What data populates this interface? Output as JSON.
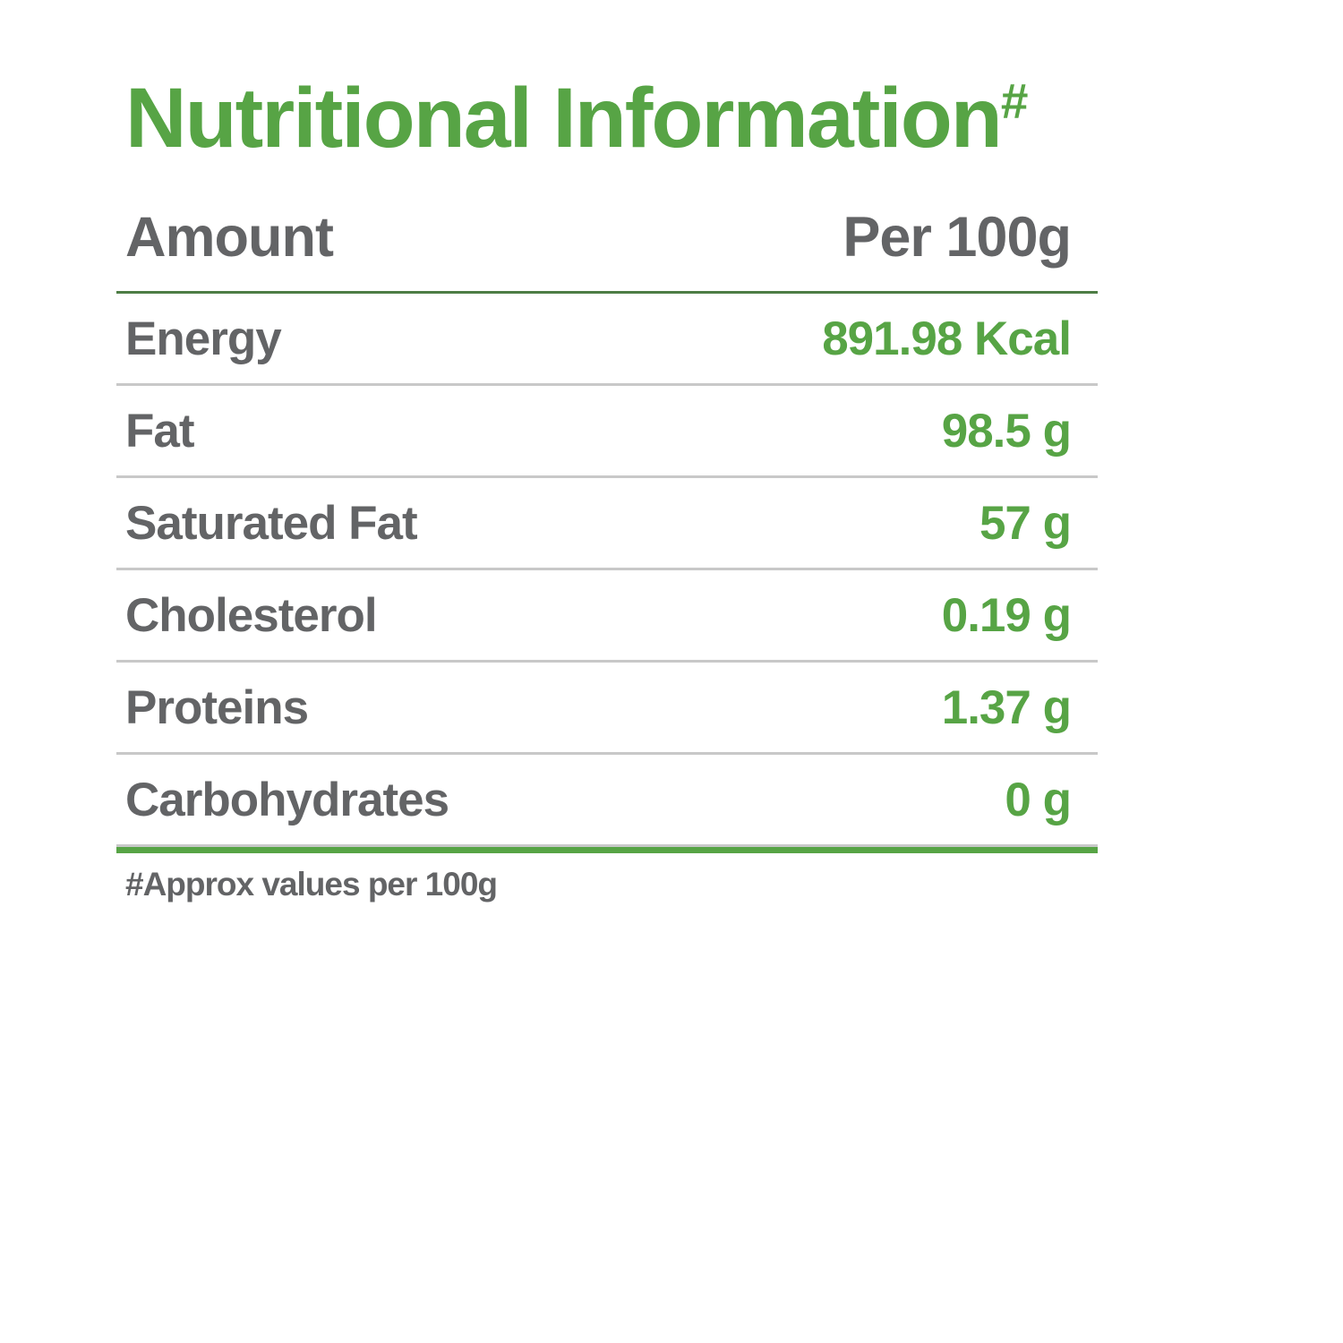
{
  "title": {
    "text": "Nutritional Information",
    "superscript": "#"
  },
  "colors": {
    "green": "#57a445",
    "dark_green_line": "#4d7d45",
    "gray_text": "#636466",
    "light_line": "#c8c8c8"
  },
  "table": {
    "header": {
      "amount_label": "Amount",
      "per_label": "Per 100g"
    },
    "rows": [
      {
        "label": "Energy",
        "value": "891.98 Kcal"
      },
      {
        "label": "Fat",
        "value": "98.5 g"
      },
      {
        "label": "Saturated Fat",
        "value": "57 g"
      },
      {
        "label": "Cholesterol",
        "value": "0.19 g"
      },
      {
        "label": "Proteins",
        "value": "1.37 g"
      },
      {
        "label": "Carbohydrates",
        "value": "0 g"
      }
    ]
  },
  "footnote": "#Approx values per 100g"
}
